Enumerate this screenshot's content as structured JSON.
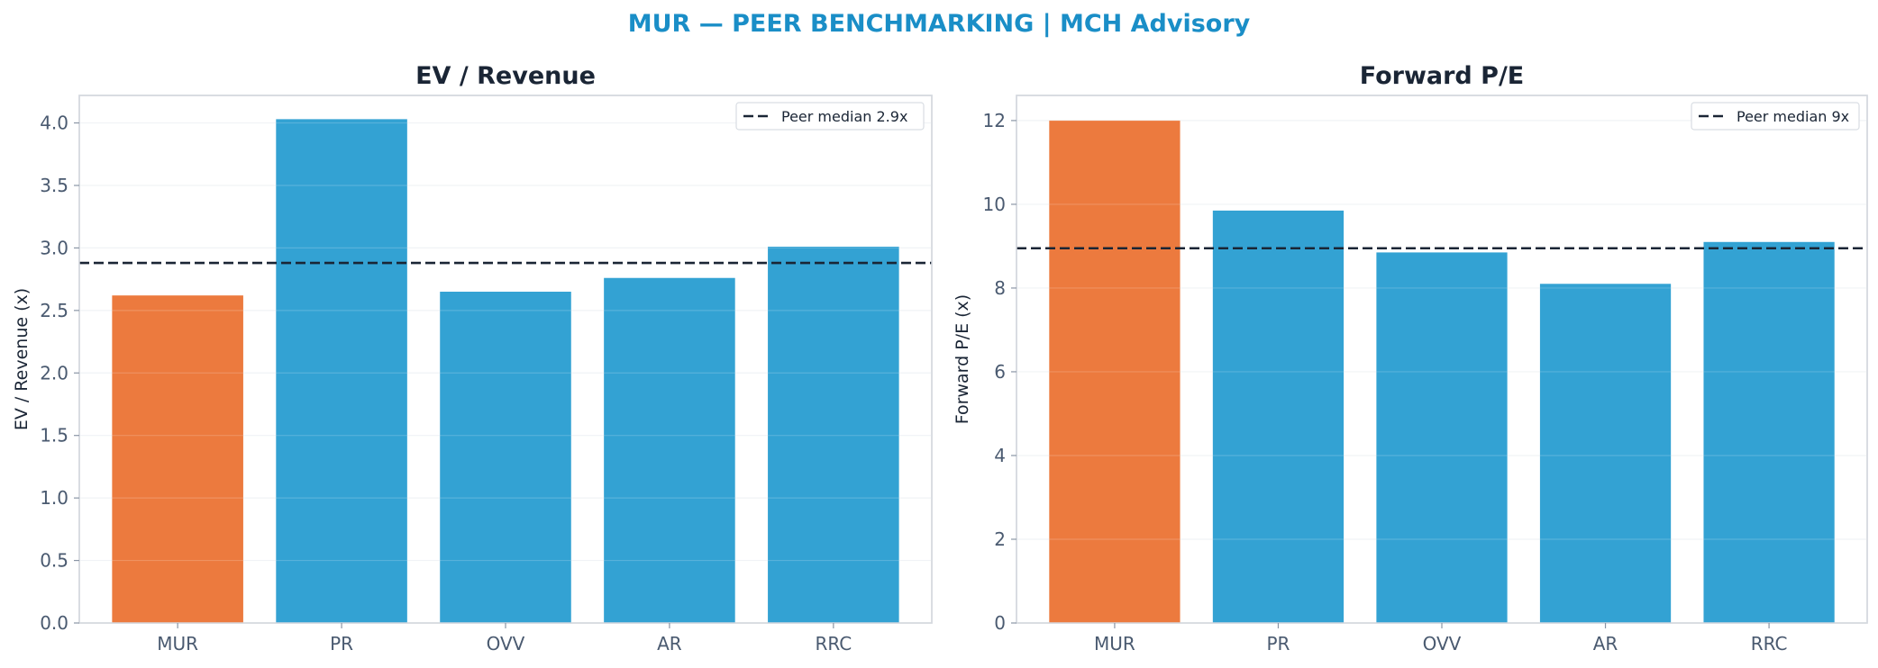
{
  "title": "MUR — PEER BENCHMARKING | MCH Advisory",
  "colors": {
    "title": "#1a8ec7",
    "highlight": "#ec7a3e",
    "peer": "#33a2d3",
    "median": "#1a2535",
    "frame": "#d4d8de",
    "grid": "#eef1f4"
  },
  "chart_data": [
    {
      "type": "bar",
      "title": "EV / Revenue",
      "ylabel": "EV / Revenue (x)",
      "xlabel": "",
      "categories": [
        "MUR",
        "PR",
        "OVV",
        "AR",
        "RRC"
      ],
      "values": [
        2.62,
        4.03,
        2.65,
        2.76,
        3.01
      ],
      "highlight": "MUR",
      "ylim": [
        0,
        4.22
      ],
      "yticks": [
        0.0,
        0.5,
        1.0,
        1.5,
        2.0,
        2.5,
        3.0,
        3.5,
        4.0
      ],
      "ytick_labels": [
        "0.0",
        "0.5",
        "1.0",
        "1.5",
        "2.0",
        "2.5",
        "3.0",
        "3.5",
        "4.0"
      ],
      "median": {
        "value": 2.88,
        "label": "Peer median 2.9x"
      },
      "grid": true,
      "legend_position": "top-right"
    },
    {
      "type": "bar",
      "title": "Forward P/E",
      "ylabel": "Forward P/E (x)",
      "xlabel": "",
      "categories": [
        "MUR",
        "PR",
        "OVV",
        "AR",
        "RRC"
      ],
      "values": [
        12.0,
        9.85,
        8.85,
        8.1,
        9.1
      ],
      "highlight": "MUR",
      "ylim": [
        0,
        12.6
      ],
      "yticks": [
        0,
        2,
        4,
        6,
        8,
        10,
        12
      ],
      "ytick_labels": [
        "0",
        "2",
        "4",
        "6",
        "8",
        "10",
        "12"
      ],
      "median": {
        "value": 8.95,
        "label": "Peer median 9x"
      },
      "grid": true,
      "legend_position": "top-right"
    }
  ]
}
